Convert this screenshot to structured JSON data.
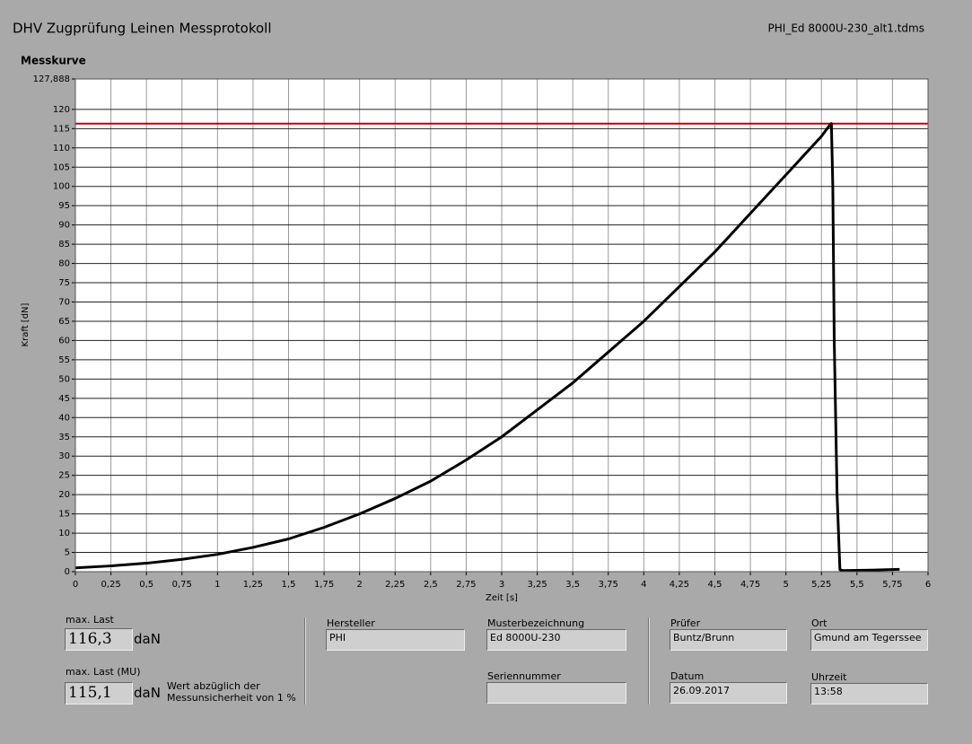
{
  "header": {
    "title": "DHV Zugprüfung Leinen Messprotokoll",
    "file": "PHI_Ed 8000U-230_alt1.tdms"
  },
  "chart_data": {
    "type": "line",
    "title": "Messkurve",
    "x_label": "Zeit [s]",
    "y_label": "Kraft [dN]",
    "x": [
      0,
      0.25,
      0.5,
      0.75,
      1,
      1.25,
      1.5,
      1.75,
      2,
      2.25,
      2.5,
      2.75,
      3,
      3.25,
      3.5,
      3.75,
      4,
      4.25,
      4.5,
      4.75,
      5,
      5.25,
      5.3,
      5.32,
      5.33,
      5.34,
      5.36,
      5.38,
      5.4,
      5.6,
      5.8
    ],
    "series": [
      {
        "name": "Kraft",
        "color": "#000000",
        "values": [
          1,
          1.5,
          2.2,
          3.2,
          4.5,
          6.3,
          8.5,
          11.5,
          15,
          19,
          23.5,
          29,
          35,
          42,
          49,
          57,
          65,
          74,
          83,
          93,
          103,
          113,
          115.5,
          116.3,
          100,
          60,
          20,
          0.5,
          0.3,
          0.4,
          0.6
        ]
      }
    ],
    "reference_line": {
      "value": 116.3,
      "color": "#c00000"
    },
    "xlim": [
      0,
      6
    ],
    "xticks": [
      0,
      {
        "value": 0.25,
        "label": "0,25"
      },
      {
        "value": 0.5,
        "label": "0,5"
      },
      {
        "value": 0.75,
        "label": "0,75"
      },
      1,
      {
        "value": 1.25,
        "label": "1,25"
      },
      {
        "value": 1.5,
        "label": "1,5"
      },
      {
        "value": 1.75,
        "label": "1,75"
      },
      2,
      {
        "value": 2.25,
        "label": "2,25"
      },
      {
        "value": 2.5,
        "label": "2,5"
      },
      {
        "value": 2.75,
        "label": "2,75"
      },
      3,
      {
        "value": 3.25,
        "label": "3,25"
      },
      {
        "value": 3.5,
        "label": "3,5"
      },
      {
        "value": 3.75,
        "label": "3,75"
      },
      4,
      {
        "value": 4.25,
        "label": "4,25"
      },
      {
        "value": 4.5,
        "label": "4,5"
      },
      {
        "value": 4.75,
        "label": "4,75"
      },
      5,
      {
        "value": 5.25,
        "label": "5,25"
      },
      {
        "value": 5.5,
        "label": "5,5"
      },
      {
        "value": 5.75,
        "label": "5,75"
      },
      6
    ],
    "ylim": [
      0,
      127.888
    ],
    "yticks": [
      0,
      5,
      10,
      15,
      20,
      25,
      30,
      35,
      40,
      45,
      50,
      55,
      60,
      65,
      70,
      75,
      80,
      85,
      90,
      95,
      100,
      105,
      110,
      115,
      120,
      {
        "value": 127.888,
        "label": "127,888"
      }
    ],
    "grid": true
  },
  "results": [
    {
      "label": "max. Last",
      "value": "116,3",
      "unit": "daN"
    },
    {
      "label": "max. Last (MU)",
      "value": "115,1",
      "unit": "daN",
      "note": "Wert abzüglich der Messunsicherheit von 1 %"
    }
  ],
  "fields": [
    {
      "label": "Hersteller",
      "value": "PHI"
    },
    {
      "label": "Musterbezeichnung",
      "value": "Ed 8000U-230"
    },
    {
      "label": "Seriennummer"
    },
    {
      "label": "Prüfer",
      "value": "Buntz/Brunn"
    },
    {
      "label": "Ort",
      "value": "Gmund am Tegerssee"
    },
    {
      "label": "Datum",
      "value": "26.09.2017"
    },
    {
      "label": "Uhrzeit",
      "value": "13:58"
    }
  ]
}
